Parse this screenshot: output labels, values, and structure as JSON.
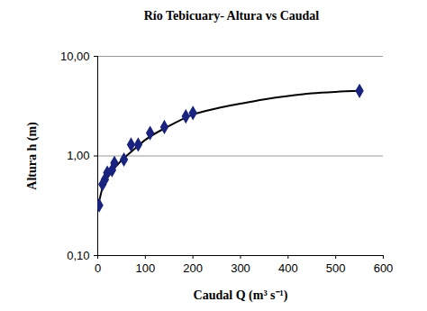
{
  "chart_data": {
    "type": "scatter",
    "title": "Río Tebicuary- Altura vs Caudal",
    "x_label": "Caudal Q (m³ s⁻¹)",
    "y_label": "Altura h (m)",
    "log": "y",
    "grid": true,
    "xlim": [
      0,
      600
    ],
    "xticks": [
      0,
      100,
      200,
      300,
      400,
      500,
      600
    ],
    "ylim": [
      0.1,
      10
    ],
    "yticks": [
      {
        "value": 0.1,
        "label": "0,10"
      },
      {
        "value": 1,
        "label": "1,00"
      },
      {
        "value": 10,
        "label": "10,00"
      }
    ],
    "series": [
      {
        "type": "scatter",
        "color": "#1a237e",
        "marker": "diamond",
        "x": [
          3,
          10,
          15,
          20,
          30,
          35,
          55,
          70,
          85,
          110,
          140,
          185,
          200,
          550
        ],
        "values": [
          0.32,
          0.52,
          0.58,
          0.68,
          0.72,
          0.85,
          0.92,
          1.3,
          1.3,
          1.7,
          1.95,
          2.5,
          2.7,
          4.5
        ]
      },
      {
        "type": "line",
        "color": "#000000",
        "line_style": "solid",
        "x": [
          0,
          10,
          25,
          50,
          75,
          100,
          150,
          200,
          250,
          300,
          350,
          400,
          450,
          500,
          550
        ],
        "values": [
          0.3,
          0.48,
          0.65,
          0.9,
          1.15,
          1.45,
          2.0,
          2.6,
          3.0,
          3.35,
          3.7,
          4.0,
          4.25,
          4.4,
          4.5
        ]
      }
    ]
  }
}
